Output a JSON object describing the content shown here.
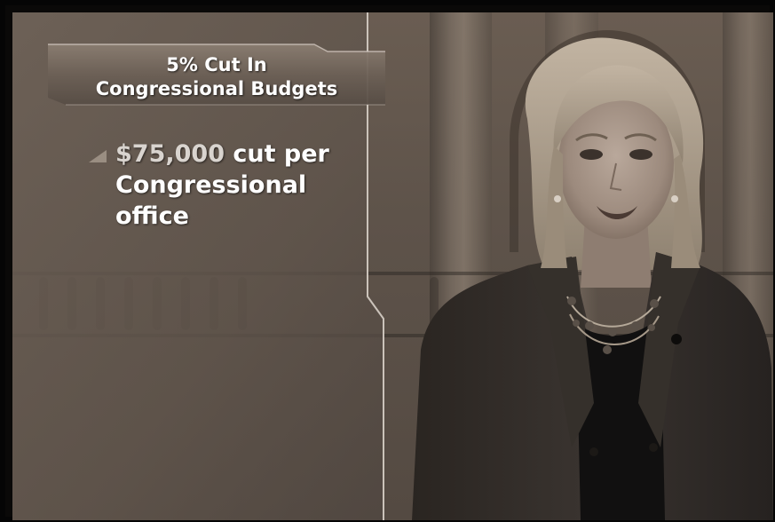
{
  "graphic": {
    "headline_line1": "5% Cut In",
    "headline_line2": "Congressional Budgets",
    "bullet_amount": "$75,000",
    "bullet_rest_line1": " cut per",
    "bullet_line2": "Congressional",
    "bullet_line3": "office"
  },
  "colors": {
    "panel": "#5c5148",
    "banner": "#6e6258",
    "text": "#ffffff",
    "jacket": "#2c2723",
    "hair": "#a89b88",
    "skin": "#a8968a"
  },
  "icons": {
    "bullet": "triangle-bullet-icon"
  }
}
